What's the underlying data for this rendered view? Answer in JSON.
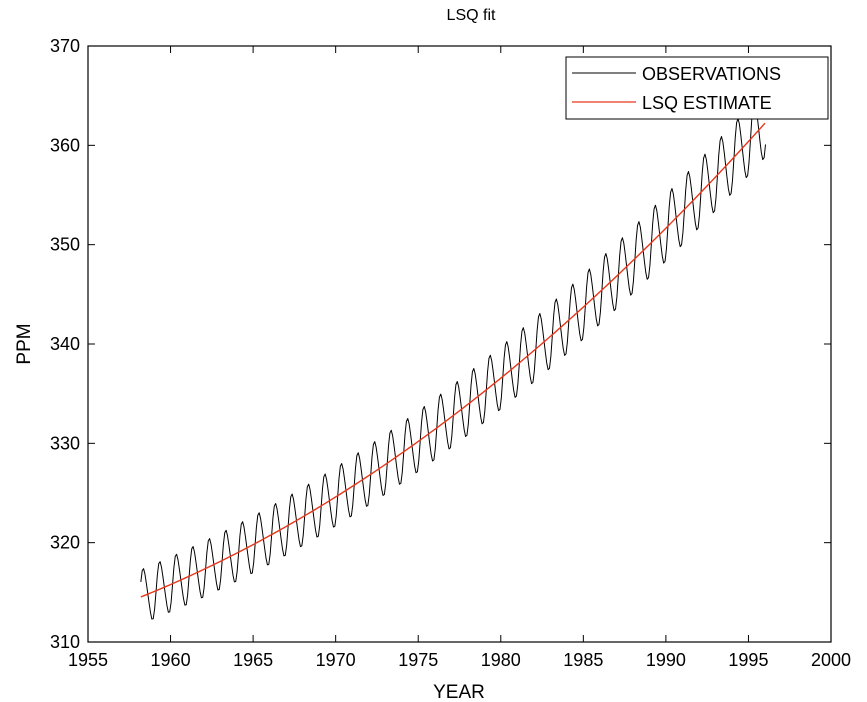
{
  "chart_data": {
    "type": "line",
    "title": "LSQ fit",
    "xlabel": "YEAR",
    "ylabel": "PPM",
    "xlim": [
      1955,
      2000
    ],
    "ylim": [
      310,
      370
    ],
    "x_ticks": [
      "1955",
      "1960",
      "1965",
      "1970",
      "1975",
      "1980",
      "1985",
      "1990",
      "1995",
      "2000"
    ],
    "y_ticks": [
      "310",
      "320",
      "330",
      "340",
      "350",
      "360",
      "370"
    ],
    "grid": false,
    "legend_position": "top-right",
    "x_range": [
      1958.2,
      1996.0
    ],
    "series": [
      {
        "name": "OBSERVATIONS",
        "color": "#000000",
        "trend": {
          "type": "quadratic",
          "x0": 1958,
          "c0": 314.4,
          "c1": 0.662,
          "c2": 0.0157
        },
        "seasonal_amplitude": 2.7,
        "seasonal_amplitude_growth_per_year": 0.02
      },
      {
        "name": "LSQ ESTIMATE",
        "color": "#e8371a",
        "trend": {
          "type": "quadratic",
          "x0": 1958,
          "c0": 314.4,
          "c1": 0.662,
          "c2": 0.0157
        }
      }
    ]
  }
}
